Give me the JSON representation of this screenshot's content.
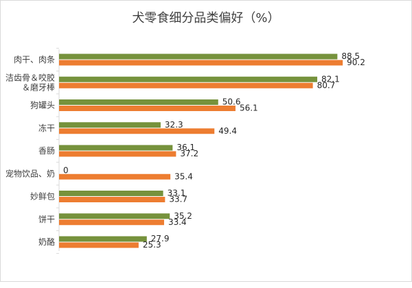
{
  "chart_data": {
    "type": "bar",
    "orientation": "horizontal",
    "title": "犬零食细分品类偏好（%）",
    "categories": [
      "肉干、肉条",
      "洁齿骨＆咬胶\n＆磨牙棒",
      "狗罐头",
      "冻干",
      "香肠",
      "宠物饮品、奶",
      "妙鲜包",
      "饼干",
      "奶酪"
    ],
    "series": [
      {
        "values": [
          88.5,
          82.1,
          50.6,
          32.3,
          36.1,
          0,
          33.1,
          35.2,
          27.9
        ],
        "color": "#76923c"
      },
      {
        "values": [
          90.2,
          80.7,
          56.1,
          49.4,
          37.2,
          35.4,
          33.7,
          33.4,
          25.3
        ],
        "color": "#ed7d31"
      }
    ],
    "xlim": [
      0,
      100
    ],
    "grid": false,
    "legend": false
  }
}
